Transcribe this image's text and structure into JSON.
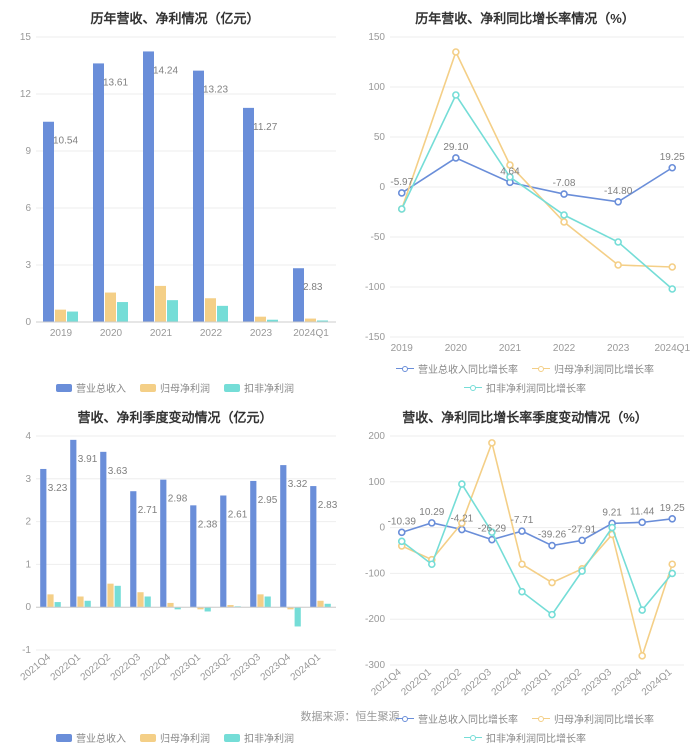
{
  "footer": "数据来源：恒生聚源",
  "colors": {
    "bar_revenue": "#6a8ed9",
    "bar_profit": "#f4cf87",
    "bar_deducted": "#75ddd7",
    "line_revenue": "#6a8ed9",
    "line_profit": "#f4cf87",
    "line_deducted": "#75ddd7",
    "grid": "#eeeeee",
    "axis": "#cccccc",
    "text_title": "#333333",
    "text_axis": "#999999",
    "text_val": "#808080",
    "bg": "#ffffff"
  },
  "legends": {
    "bars": [
      "营业总收入",
      "归母净利润",
      "扣非净利润"
    ],
    "lines": [
      "营业总收入同比增长率",
      "归母净利润同比增长率",
      "扣非净利润同比增长率"
    ]
  },
  "charts": {
    "annual_bar": {
      "title": "历年营收、净利情况（亿元）",
      "type": "bar",
      "ylim": [
        0,
        15
      ],
      "ytick_step": 3,
      "categories": [
        "2019",
        "2020",
        "2021",
        "2022",
        "2023",
        "2024Q1"
      ],
      "series": [
        {
          "key": "revenue",
          "name": "营业总收入",
          "color": "#6a8ed9",
          "values": [
            10.54,
            13.61,
            14.24,
            13.23,
            11.27,
            2.83
          ],
          "labels": [
            "10.54",
            "13.61",
            "14.24",
            "13.23",
            "11.27",
            "2.83"
          ],
          "show_labels": true
        },
        {
          "key": "profit",
          "name": "归母净利润",
          "color": "#f4cf87",
          "values": [
            0.65,
            1.55,
            1.9,
            1.25,
            0.28,
            0.18
          ],
          "show_labels": false
        },
        {
          "key": "deducted",
          "name": "扣非净利润",
          "color": "#75ddd7",
          "values": [
            0.55,
            1.05,
            1.15,
            0.85,
            0.12,
            0.08
          ],
          "show_labels": false
        }
      ]
    },
    "annual_line": {
      "title": "历年营收、净利同比增长率情况（%）",
      "type": "line",
      "ylim": [
        -150,
        150
      ],
      "ytick_step": 50,
      "categories": [
        "2019",
        "2020",
        "2021",
        "2022",
        "2023",
        "2024Q1"
      ],
      "series": [
        {
          "key": "revenue_g",
          "name": "营业总收入同比增长率",
          "color": "#6a8ed9",
          "values": [
            -5.97,
            29.1,
            4.64,
            -7.08,
            -14.8,
            19.25
          ],
          "labels": [
            "-5.97",
            "29.10",
            "4.64",
            "-7.08",
            "-14.80",
            "19.25"
          ],
          "show_labels": true
        },
        {
          "key": "profit_g",
          "name": "归母净利润同比增长率",
          "color": "#f4cf87",
          "values": [
            -22,
            135,
            22,
            -35,
            -78,
            -80
          ],
          "show_labels": false
        },
        {
          "key": "deducted_g",
          "name": "扣非净利润同比增长率",
          "color": "#75ddd7",
          "values": [
            -22,
            92,
            10,
            -28,
            -55,
            -102
          ],
          "show_labels": false
        }
      ]
    },
    "quarter_bar": {
      "title": "营收、净利季度变动情况（亿元）",
      "type": "bar-neg",
      "ylim": [
        -1,
        4
      ],
      "ytick_step": 1,
      "categories": [
        "2021Q4",
        "2022Q1",
        "2022Q2",
        "2022Q3",
        "2022Q4",
        "2023Q1",
        "2023Q2",
        "2023Q3",
        "2023Q4",
        "2024Q1"
      ],
      "cat_rotate": -40,
      "series": [
        {
          "key": "revenue",
          "name": "营业总收入",
          "color": "#6a8ed9",
          "values": [
            3.23,
            3.91,
            3.63,
            2.71,
            2.98,
            2.38,
            2.61,
            2.95,
            3.32,
            2.83
          ],
          "labels": [
            "3.23",
            "3.91",
            "3.63",
            "2.71",
            "2.98",
            "2.38",
            "2.61",
            "2.95",
            "3.32",
            "2.83"
          ],
          "show_labels": true
        },
        {
          "key": "profit",
          "name": "归母净利润",
          "color": "#f4cf87",
          "values": [
            0.3,
            0.25,
            0.55,
            0.35,
            0.1,
            -0.05,
            0.05,
            0.3,
            -0.05,
            0.15
          ],
          "show_labels": false
        },
        {
          "key": "deducted",
          "name": "扣非净利润",
          "color": "#75ddd7",
          "values": [
            0.12,
            0.15,
            0.5,
            0.25,
            -0.05,
            -0.1,
            0.02,
            0.25,
            -0.45,
            0.08
          ],
          "show_labels": false
        }
      ]
    },
    "quarter_line": {
      "title": "营收、净利同比增长率季度变动情况（%）",
      "type": "line",
      "ylim": [
        -300,
        200
      ],
      "ytick_step": 100,
      "categories": [
        "2021Q4",
        "2022Q1",
        "2022Q2",
        "2022Q3",
        "2022Q4",
        "2023Q1",
        "2023Q2",
        "2023Q3",
        "2023Q4",
        "2024Q1"
      ],
      "cat_rotate": -40,
      "series": [
        {
          "key": "revenue_g",
          "name": "营业总收入同比增长率",
          "color": "#6a8ed9",
          "values": [
            -10.39,
            10.29,
            -4.21,
            -26.29,
            -7.71,
            -39.26,
            -27.91,
            9.21,
            11.44,
            19.25
          ],
          "labels": [
            "-10.39",
            "10.29",
            "-4.21",
            "-26.29",
            "-7.71",
            "-39.26",
            "-27.91",
            "9.21",
            "11.44",
            "19.25"
          ],
          "show_labels": true
        },
        {
          "key": "profit_g",
          "name": "归母净利润同比增长率",
          "color": "#f4cf87",
          "values": [
            -40,
            -70,
            10,
            185,
            -80,
            -120,
            -90,
            -15,
            -280,
            -80
          ],
          "show_labels": false
        },
        {
          "key": "deducted_g",
          "name": "扣非净利润同比增长率",
          "color": "#75ddd7",
          "values": [
            -30,
            -80,
            95,
            -10,
            -140,
            -190,
            -95,
            0,
            -180,
            -100
          ],
          "show_labels": false
        }
      ]
    }
  }
}
